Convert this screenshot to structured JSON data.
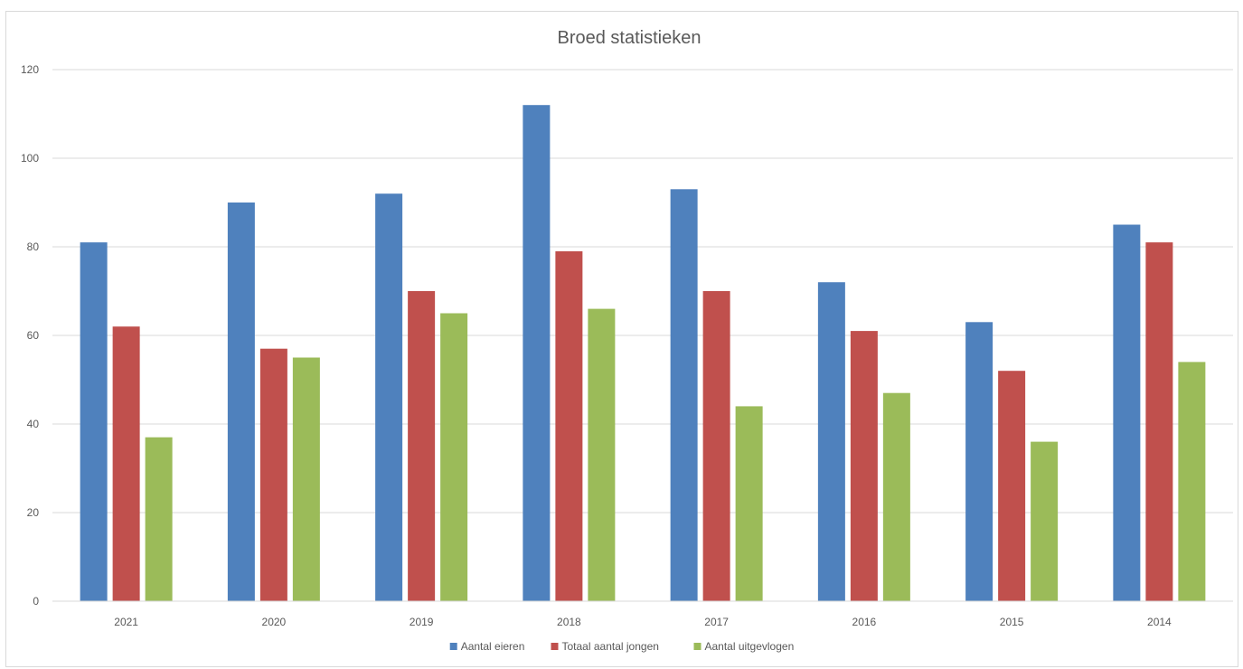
{
  "chart_data": {
    "type": "bar",
    "title": "Broed statistieken",
    "categories": [
      "2021",
      "2020",
      "2019",
      "2018",
      "2017",
      "2016",
      "2015",
      "2014"
    ],
    "series": [
      {
        "name": "Aantal eieren",
        "color": "#4f81bd",
        "values": [
          81,
          90,
          92,
          112,
          93,
          72,
          63,
          85
        ]
      },
      {
        "name": "Totaal aantal jongen",
        "color": "#c0504d",
        "values": [
          62,
          57,
          70,
          79,
          70,
          61,
          52,
          81
        ]
      },
      {
        "name": "Aantal uitgevlogen",
        "color": "#9bbb59",
        "values": [
          37,
          55,
          65,
          66,
          44,
          47,
          36,
          54
        ]
      }
    ],
    "ylim": [
      0,
      120
    ],
    "yticks": [
      "0",
      "20",
      "40",
      "60",
      "80",
      "100",
      "120"
    ],
    "grid": true,
    "legend": "bottom-center"
  }
}
